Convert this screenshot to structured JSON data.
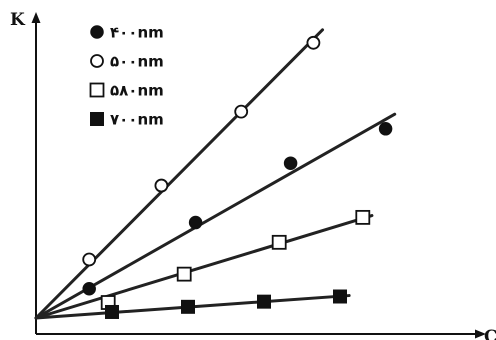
{
  "chart_data": {
    "type": "scatter",
    "xlabel": "C",
    "ylabel": "K",
    "x_ticks_shown": false,
    "y_ticks_shown": false,
    "grid": false,
    "legend_position": "top-left",
    "series": [
      {
        "name": "۴۰۰nm",
        "marker": "filled-circle",
        "x": [
          0.7,
          2.1,
          3.35,
          4.6
        ],
        "y": [
          0.34,
          1.11,
          1.8,
          2.2
        ],
        "fit_line": true
      },
      {
        "name": "۵۰۰nm",
        "marker": "open-circle",
        "x": [
          0.7,
          1.65,
          2.7,
          3.65
        ],
        "y": [
          0.68,
          1.54,
          2.4,
          3.2
        ],
        "fit_line": true
      },
      {
        "name": "۵۸۰nm",
        "marker": "open-square",
        "x": [
          0.95,
          1.95,
          3.2,
          4.3
        ],
        "y": [
          0.18,
          0.51,
          0.88,
          1.17
        ],
        "fit_line": true
      },
      {
        "name": "۷۰۰nm",
        "marker": "filled-square",
        "x": [
          1.0,
          2.0,
          3.0,
          4.0
        ],
        "y": [
          0.07,
          0.13,
          0.19,
          0.25
        ],
        "fit_line": true
      }
    ]
  }
}
